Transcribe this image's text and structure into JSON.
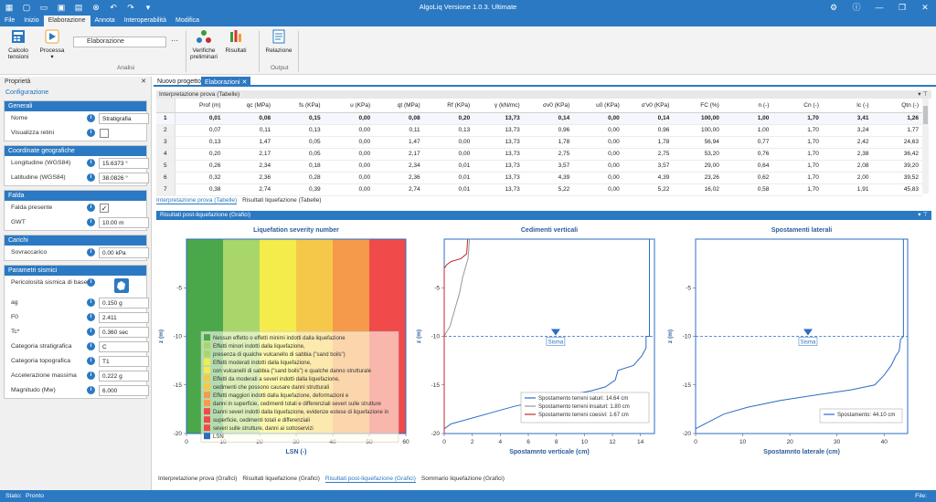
{
  "app": {
    "title": "AlgoLiq Versione 1.0.3. Ultimate"
  },
  "menu": [
    "File",
    "Inizio",
    "Elaborazione",
    "Annota",
    "Interoperabilità",
    "Modifica"
  ],
  "ribbon": {
    "calcolo": "Calcolo tensioni",
    "processa": "Processa",
    "elaborazione_select": "Elaborazione",
    "verifiche": "Verifiche preliminari",
    "risultati": "Risultati",
    "relazione": "Relazione",
    "group_analisi": "Analisi",
    "group_output": "Output"
  },
  "props": {
    "title": "Proprietà",
    "sub": "Configurazione",
    "generali": {
      "h": "Generali",
      "nome_l": "Nome",
      "nome_v": "Stratigrafia",
      "vis_l": "Visualizza retini"
    },
    "coord": {
      "h": "Coordinate geografiche",
      "lon_l": "Longitudine (WGS84)",
      "lon_v": "15.6373 °",
      "lat_l": "Latitudine (WGS84)",
      "lat_v": "38.0826 °"
    },
    "falda": {
      "h": "Falda",
      "pres_l": "Falda presente",
      "gwt_l": "GWT",
      "gwt_v": "10.00 m"
    },
    "carichi": {
      "h": "Carichi",
      "sov_l": "Sovraccarico",
      "sov_v": "0.00 kPa"
    },
    "sismici": {
      "h": "Parametri sismici",
      "per_l": "Pericolosità sismica di base",
      "ag_l": "ag",
      "ag_v": "0.150 g",
      "f0_l": "F0",
      "f0_v": "2.411",
      "tc_l": "Tc*",
      "tc_v": "0.360 sec",
      "cs_l": "Categoria stratigrafica",
      "cs_v": "C",
      "ct_l": "Categoria topografica",
      "ct_v": "T1",
      "am_l": "Accelerazione massima",
      "am_v": "0.222 g",
      "mw_l": "Magnitudo (Mw)",
      "mw_v": "6.000"
    }
  },
  "tabs": {
    "t1": "Nuovo progetto",
    "t2": "Elaborazioni"
  },
  "table": {
    "header": "Interpretazione prova  (Tabelle)",
    "cols": [
      "",
      "Prof (m)",
      "qc (MPa)",
      "fs (KPa)",
      "u (KPa)",
      "qt (MPa)",
      "Rf (KPa)",
      "γ (kN/mc)",
      "σv0 (KPa)",
      "u0 (KPa)",
      "σ'v0 (KPa)",
      "FC (%)",
      "n (-)",
      "Cn (-)",
      "Ic (-)",
      "Qtn (-)"
    ],
    "rows": [
      [
        "1",
        "0,01",
        "0,08",
        "0,15",
        "0,00",
        "0,08",
        "0,20",
        "13,73",
        "0,14",
        "0,00",
        "0,14",
        "100,00",
        "1,00",
        "1,70",
        "3,41",
        "1,26"
      ],
      [
        "2",
        "0,07",
        "0,11",
        "0,13",
        "0,00",
        "0,11",
        "0,13",
        "13,73",
        "0,96",
        "0,00",
        "0,96",
        "100,00",
        "1,00",
        "1,70",
        "3,24",
        "1,77"
      ],
      [
        "3",
        "0,13",
        "1,47",
        "0,05",
        "0,00",
        "1,47",
        "0,00",
        "13,73",
        "1,78",
        "0,00",
        "1,78",
        "56,94",
        "0,77",
        "1,70",
        "2,42",
        "24,63"
      ],
      [
        "4",
        "0,20",
        "2,17",
        "0,05",
        "0,00",
        "2,17",
        "0,00",
        "13,73",
        "2,75",
        "0,00",
        "2,75",
        "53,20",
        "0,76",
        "1,70",
        "2,38",
        "36,42"
      ],
      [
        "5",
        "0,26",
        "2,34",
        "0,18",
        "0,00",
        "2,34",
        "0,01",
        "13,73",
        "3,57",
        "0,00",
        "3,57",
        "29,00",
        "0,64",
        "1,70",
        "2,08",
        "39,20"
      ],
      [
        "6",
        "0,32",
        "2,36",
        "0,28",
        "0,00",
        "2,36",
        "0,01",
        "13,73",
        "4,39",
        "0,00",
        "4,39",
        "23,26",
        "0,62",
        "1,70",
        "2,00",
        "39,52"
      ],
      [
        "7",
        "0,38",
        "2,74",
        "0,39",
        "0,00",
        "2,74",
        "0,01",
        "13,73",
        "5,22",
        "0,00",
        "5,22",
        "16,02",
        "0,58",
        "1,70",
        "1,91",
        "45,83"
      ]
    ],
    "subtabs": [
      "Interpretazione prova  (Tabelle)",
      "Risultati liquefazione (Tabelle)"
    ]
  },
  "graphs_header": "Risultati post-liquefazione (Grafici)",
  "bottom_tabs": [
    "Interpretazione prova (Grafici)",
    "Risultati liquefazione (Grafici)",
    "Risultati post-liquefazione (Grafici)",
    "Sommario liquefazione (Grafici)"
  ],
  "status": {
    "label": "Stato:",
    "value": "Pronto",
    "file": "File:"
  },
  "chart_data": [
    {
      "type": "area",
      "title": "Liquefation severity number",
      "xlabel": "LSN (-)",
      "ylabel": "z (m)",
      "xlim": [
        0,
        60
      ],
      "ylim": [
        -20,
        0
      ],
      "xticks": [
        "0",
        "10",
        "20",
        "30",
        "40",
        "50",
        "60"
      ],
      "yticks": [
        "-5",
        "-10",
        "-15",
        "-20"
      ],
      "bands": [
        {
          "x0": 0,
          "x1": 10,
          "color": "#4aa84a"
        },
        {
          "x0": 10,
          "x1": 20,
          "color": "#a8d66a"
        },
        {
          "x0": 20,
          "x1": 30,
          "color": "#f4ec4a"
        },
        {
          "x0": 30,
          "x1": 40,
          "color": "#f5c84a"
        },
        {
          "x0": 40,
          "x1": 50,
          "color": "#f59a4a"
        },
        {
          "x0": 50,
          "x1": 60,
          "color": "#f04a4a"
        }
      ],
      "legend": [
        "Nessun effetto o effetti minimi indotti dalla liquefazione",
        "Effetti minori indotti dalla liquefazione,",
        "presenza di qualche vulcanello di sabbia (\"sand boils\")",
        "Effetti moderati indotti dalla liquefazione,",
        "con vulcanelli di sabbia (\"sand boils\") e qualche danno strutturale",
        "Effetti da moderati a severi indotti dalla liquefazione,",
        "cedimenti che possono causare danni strutturali",
        "Effetti maggiori indotti dalla liquefazione, deformazioni e",
        "danni in superficie, cedimenti totali e differenziali severi sulle strutture",
        "Danni severi indotti dalla liquefazione, evidenze estese di liquefazione in",
        "superficie, cedimenti totali e differenziali",
        "severi sulle strutture, danni ai sottoservizi",
        "LSN"
      ]
    },
    {
      "type": "line",
      "title": "Cedimenti verticali",
      "xlabel": "Spostamnto verticale (cm)",
      "ylabel": "z (m)",
      "xlim": [
        0,
        15
      ],
      "ylim": [
        -20,
        0
      ],
      "xticks": [
        "0",
        "2",
        "4",
        "6",
        "8",
        "10",
        "12",
        "14"
      ],
      "yticks": [
        "-5",
        "-10",
        "-15",
        "-20"
      ],
      "water_label": "Sisma",
      "water_z": -10,
      "series": [
        {
          "name": "Spostamento terreni saturi: 14.64 cm",
          "color": "#2b6cc4",
          "x": [
            14.64,
            14.64,
            14.4,
            14.4,
            14.1,
            13.5,
            12.4,
            12.2,
            11.5,
            10.5,
            9.0,
            7.0,
            5.0,
            3.5,
            2.0,
            0.5,
            0.0
          ],
          "y": [
            0,
            -10,
            -10,
            -11.2,
            -12,
            -13,
            -13.5,
            -14.5,
            -15.2,
            -15.6,
            -16,
            -16.6,
            -17.2,
            -17.8,
            -18.4,
            -19,
            -19.5
          ]
        },
        {
          "name": "Spostamento terreni insaturi: 1.80 cm",
          "color": "#999999",
          "x": [
            1.8,
            1.7,
            1.3,
            1.1,
            0.8,
            0.6,
            0.4,
            0.1,
            0.0
          ],
          "y": [
            0,
            -2,
            -4,
            -5.5,
            -7,
            -8,
            -9,
            -9.7,
            -10
          ]
        },
        {
          "name": "Spostamento terreni coesivi: 1.67 cm",
          "color": "#c0282c",
          "x": [
            1.67,
            1.65,
            1.6,
            1.2,
            0.5,
            0.2,
            0.0,
            0.0
          ],
          "y": [
            0,
            -0.5,
            -1.5,
            -2,
            -2.3,
            -2.6,
            -3,
            -20
          ]
        }
      ]
    },
    {
      "type": "line",
      "title": "Spostamenti laterali",
      "xlabel": "Spostamnto laterale (cm)",
      "ylabel": "z (m)",
      "xlim": [
        0,
        45
      ],
      "ylim": [
        -20,
        0
      ],
      "xticks": [
        "0",
        "10",
        "20",
        "30",
        "40"
      ],
      "yticks": [
        "-5",
        "-10",
        "-15",
        "-20"
      ],
      "water_label": "Sisma",
      "water_z": -10,
      "series": [
        {
          "name": "Spostamento: 44.10 cm",
          "color": "#2b6cc4",
          "x": [
            44.1,
            44.1,
            43.5,
            43.2,
            42.5,
            41.5,
            40,
            38,
            33,
            26,
            18,
            11,
            6,
            2,
            0
          ],
          "y": [
            0,
            -10,
            -10.3,
            -11.5,
            -12,
            -13,
            -14,
            -15,
            -15.5,
            -16,
            -16.6,
            -17.3,
            -18,
            -19,
            -19.5
          ]
        }
      ]
    }
  ]
}
